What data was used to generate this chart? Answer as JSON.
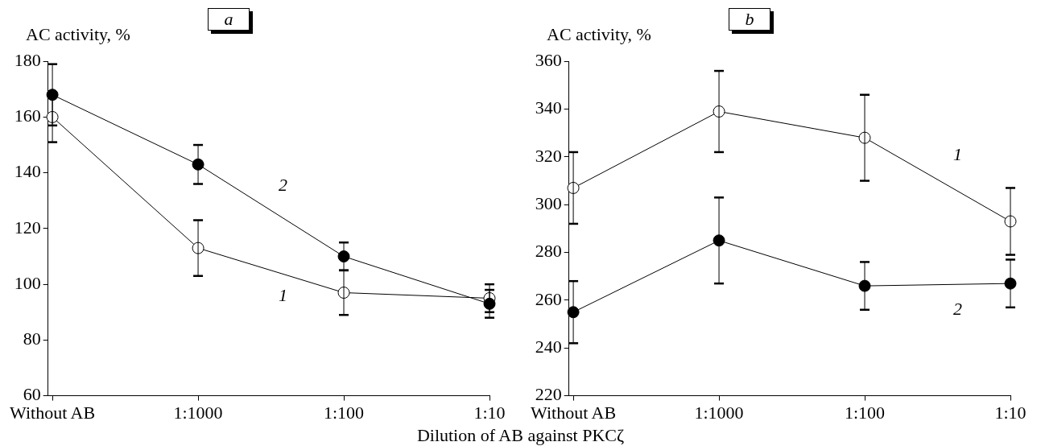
{
  "chart_data": [
    {
      "type": "line",
      "title": "a",
      "ylabel": "AC activity, %",
      "xlabel": "Dilution of AB against PKCζ",
      "categories": [
        "Without AB",
        "1:1000",
        "1:100",
        "1:10"
      ],
      "ylim": [
        60,
        180
      ],
      "yticks": [
        60,
        80,
        100,
        120,
        140,
        160,
        180
      ],
      "grid": false,
      "legend": false,
      "marker": "circle",
      "line_style": "solid",
      "series": [
        {
          "name": "1",
          "color": "#000000",
          "values": [
            160,
            113,
            97,
            95
          ],
          "errors": [
            9,
            10,
            8,
            5
          ]
        },
        {
          "name": "2",
          "color": "#000000",
          "values": [
            168,
            143,
            110,
            93
          ],
          "errors": [
            11,
            7,
            5,
            5
          ]
        }
      ]
    },
    {
      "type": "line",
      "title": "b",
      "ylabel": "AC activity, %",
      "categories": [
        "Without AB",
        "1:1000",
        "1:100",
        "1:10"
      ],
      "ylim": [
        220,
        360
      ],
      "yticks": [
        220,
        240,
        260,
        280,
        300,
        320,
        340,
        360
      ],
      "grid": false,
      "legend": false,
      "marker": "circle",
      "line_style": "solid",
      "series": [
        {
          "name": "1",
          "color": "#000000",
          "values": [
            307,
            339,
            328,
            293
          ],
          "errors": [
            15,
            17,
            18,
            14
          ]
        },
        {
          "name": "2",
          "color": "#000000",
          "values": [
            255,
            285,
            266,
            267
          ],
          "errors": [
            13,
            18,
            10,
            10
          ]
        }
      ]
    }
  ]
}
